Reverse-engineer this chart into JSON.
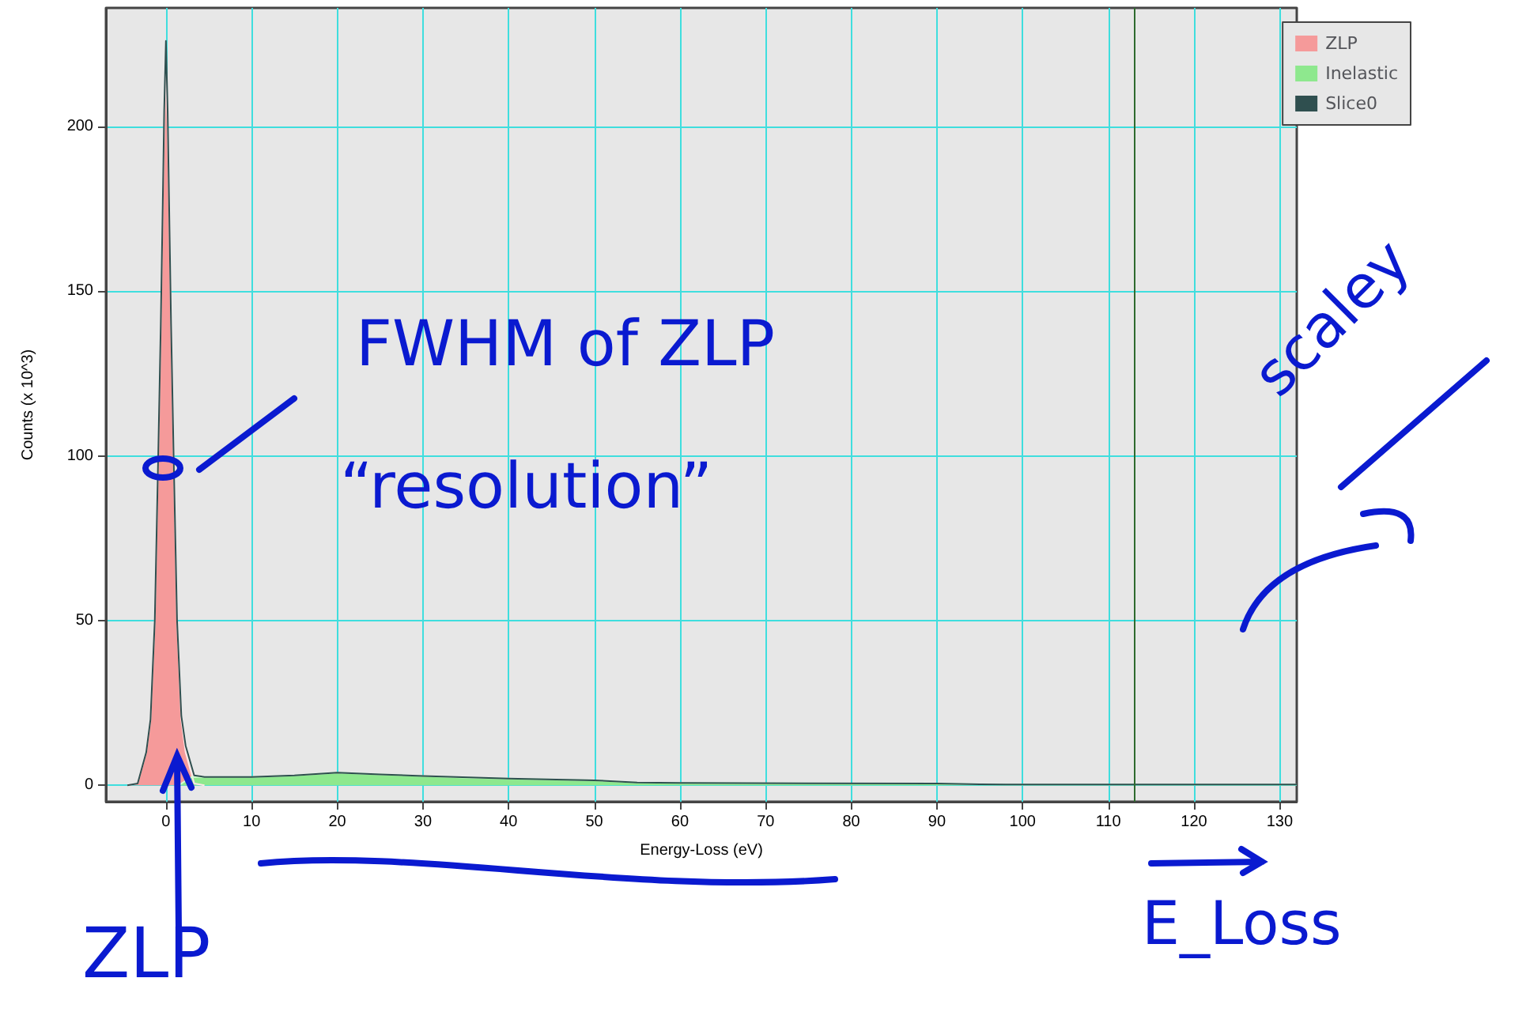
{
  "chart_data": {
    "type": "area",
    "xlabel": "Energy-Loss (eV)",
    "ylabel": "Counts (x 10^3)",
    "xlim": [
      -7,
      132
    ],
    "xticks": [
      0,
      10,
      20,
      30,
      40,
      50,
      60,
      70,
      80,
      90,
      100,
      110,
      120,
      130
    ],
    "ylim": [
      -5,
      236
    ],
    "yticks": [
      0,
      50,
      100,
      150,
      200
    ],
    "grid": true,
    "legend": "top right",
    "marker": "none",
    "series": [
      {
        "name": "ZLP",
        "type": "area",
        "color": "#f59a9a",
        "x": [
          -4.5,
          -3.3,
          -2.3,
          -1.8,
          -1.3,
          -0.9,
          -0.6,
          -0.35,
          -0.2,
          0,
          0.2,
          0.35,
          0.6,
          0.9,
          1.3,
          1.8,
          2.3,
          3.3,
          4.5
        ],
        "values": [
          0,
          0.5,
          10,
          20,
          50,
          100,
          140,
          180,
          200,
          218,
          200,
          180,
          140,
          100,
          50,
          20,
          10,
          0.5,
          0
        ]
      },
      {
        "name": "Inelastic",
        "type": "area",
        "color": "#8ee88e",
        "x": [
          1.5,
          3,
          10,
          15,
          20,
          25,
          30,
          35,
          40,
          50,
          55,
          60,
          70,
          80,
          90,
          95,
          100,
          110,
          120,
          132
        ],
        "values": [
          0,
          2.5,
          2.5,
          3,
          3.8,
          3.3,
          2.8,
          2.3,
          2,
          1.5,
          0.8,
          0.7,
          0.6,
          0.5,
          0.5,
          0.3,
          0.2,
          0.2,
          0.2,
          0.2
        ]
      },
      {
        "name": "Slice0",
        "type": "line",
        "color": "#2f4f4f",
        "x": [
          -4.5,
          -3.3,
          -2.3,
          -1.8,
          -1.3,
          -0.9,
          -0.6,
          -0.35,
          -0.2,
          0,
          0.2,
          0.35,
          0.6,
          0.9,
          1.3,
          1.8,
          2.3,
          3.3,
          4.5,
          10,
          15,
          20,
          25,
          30,
          40,
          50,
          55,
          60,
          90,
          95,
          100,
          132
        ],
        "values": [
          0,
          0.5,
          10,
          20,
          50,
          100,
          140,
          180,
          205,
          226,
          205,
          180,
          140,
          100,
          50,
          21,
          12,
          3,
          2.5,
          2.5,
          3,
          3.8,
          3.3,
          2.8,
          2,
          1.5,
          0.8,
          0.7,
          0.5,
          0.3,
          0.2,
          0.2
        ]
      }
    ],
    "ref_lines": [
      {
        "axis": "x",
        "value": 113,
        "color": "#2e6b2e"
      }
    ],
    "annotations": [
      "FWHM of ZLP",
      "“resolution”",
      "scaley",
      "ZLP",
      "E_Loss"
    ]
  }
}
